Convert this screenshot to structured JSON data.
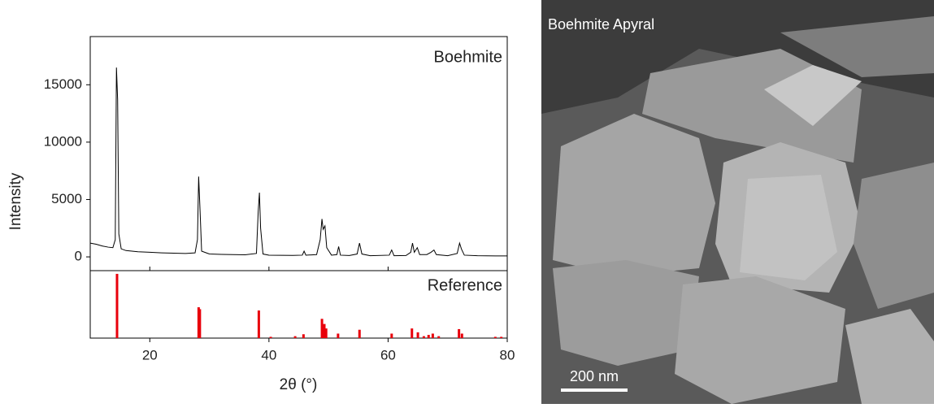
{
  "chart_data": [
    {
      "type": "line",
      "ylabel": "Intensity",
      "xlim": [
        10,
        80
      ],
      "ylim": [
        -1200,
        19200
      ],
      "yticks": [
        0,
        5000,
        10000,
        15000
      ],
      "x": [
        10,
        11,
        12,
        13,
        13.8,
        14.2,
        14.4,
        14.6,
        14.8,
        15.2,
        16,
        18,
        20,
        22,
        24,
        26,
        27.6,
        28.0,
        28.2,
        28.4,
        28.7,
        30,
        32,
        34,
        36,
        37.9,
        38.2,
        38.4,
        38.6,
        39,
        40,
        42,
        44,
        45.6,
        45.9,
        46.2,
        48,
        48.6,
        48.9,
        49.1,
        49.4,
        49.7,
        50.5,
        51.4,
        51.7,
        52,
        53.5,
        54.8,
        55.2,
        55.6,
        57,
        60.2,
        60.6,
        61,
        63,
        63.8,
        64.1,
        64.4,
        64.9,
        65.3,
        66.5,
        67.2,
        67.7,
        68.1,
        70,
        71.6,
        72.0,
        72.3,
        72.8,
        75,
        78,
        80
      ],
      "series": [
        {
          "name": "Boehmite",
          "color": "#000000",
          "values": [
            1200,
            1100,
            950,
            850,
            800,
            1500,
            16500,
            13700,
            2000,
            700,
            550,
            450,
            400,
            350,
            320,
            300,
            350,
            1500,
            7000,
            4500,
            500,
            250,
            220,
            200,
            180,
            300,
            4000,
            5600,
            2500,
            250,
            150,
            140,
            130,
            150,
            500,
            150,
            200,
            1500,
            3300,
            2400,
            2700,
            800,
            150,
            200,
            900,
            150,
            120,
            250,
            1200,
            250,
            100,
            150,
            600,
            100,
            120,
            400,
            1200,
            400,
            800,
            200,
            200,
            400,
            600,
            200,
            100,
            300,
            1200,
            700,
            150,
            100,
            80,
            80
          ]
        }
      ]
    },
    {
      "type": "bar",
      "xlabel": "2θ (°)",
      "xlim": [
        10,
        80
      ],
      "xticks": [
        20,
        40,
        60,
        80
      ],
      "ylim": [
        0,
        105
      ],
      "x": [
        14.5,
        28.2,
        28.4,
        38.3,
        40.3,
        44.4,
        45.8,
        48.9,
        49.3,
        49.6,
        51.6,
        55.2,
        60.6,
        64.0,
        65.0,
        66.0,
        66.8,
        67.5,
        68.5,
        71.9,
        72.4,
        78.0,
        79.0
      ],
      "series": [
        {
          "name": "Reference",
          "color": "#e8000b",
          "values": [
            100,
            48,
            45,
            43,
            2,
            3,
            6,
            30,
            22,
            15,
            7,
            13,
            7,
            15,
            9,
            3,
            5,
            7,
            3,
            14,
            7,
            2,
            2
          ]
        }
      ]
    }
  ],
  "image": {
    "label": "Boehmite Apyral",
    "scale_bar": "200 nm"
  }
}
